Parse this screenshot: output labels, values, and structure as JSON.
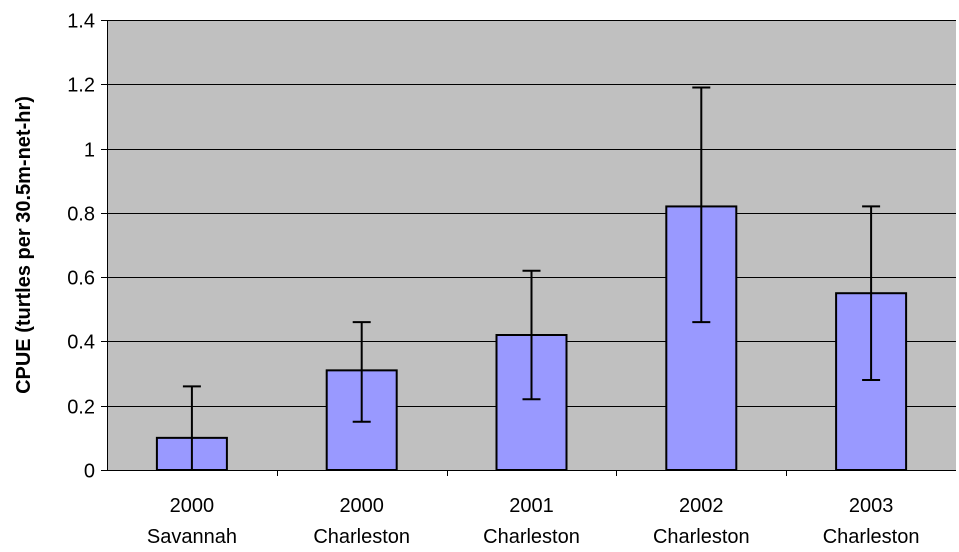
{
  "chart_data": {
    "type": "bar",
    "title": "",
    "xlabel": "",
    "ylabel": "CPUE (turtles per 30.5m-net-hr)",
    "ylim": [
      0,
      1.4
    ],
    "yticks": [
      "0",
      "0.2",
      "0.4",
      "0.6",
      "0.8",
      "1",
      "1.2",
      "1.4"
    ],
    "grid": true,
    "legend": "none",
    "categories": [
      [
        "2000",
        "Savannah"
      ],
      [
        "2000",
        "Charleston"
      ],
      [
        "2001",
        "Charleston"
      ],
      [
        "2002",
        "Charleston"
      ],
      [
        "2003",
        "Charleston"
      ]
    ],
    "values": [
      0.1,
      0.31,
      0.42,
      0.82,
      0.55
    ],
    "error_upper": [
      0.26,
      0.46,
      0.62,
      1.19,
      0.82
    ],
    "error_lower": [
      0.0,
      0.15,
      0.22,
      0.46,
      0.28
    ],
    "colors": {
      "plot_background": "#c0c0c0",
      "bar_fill": "#9999ff",
      "bar_stroke": "#000000",
      "grid": "#000000"
    }
  }
}
